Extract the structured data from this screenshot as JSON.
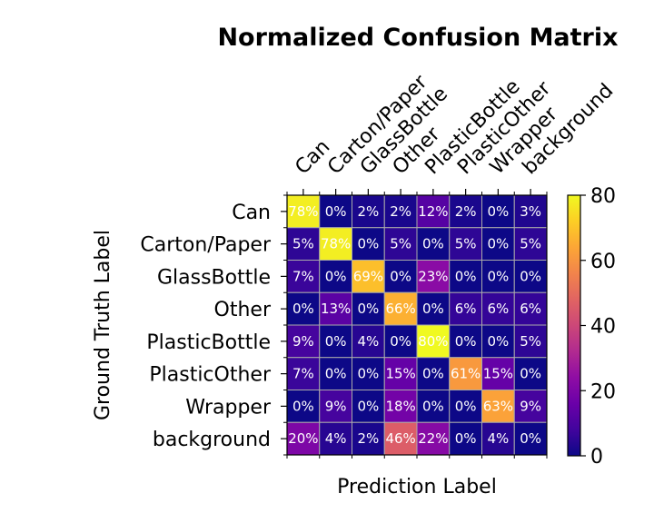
{
  "chart_data": {
    "type": "heatmap",
    "title": "Normalized Confusion Matrix",
    "xlabel": "Prediction Label",
    "ylabel": "Ground Truth Label",
    "x_categories": [
      "Can",
      "Carton/Paper",
      "GlassBottle",
      "Other",
      "PlasticBottle",
      "PlasticOther",
      "Wrapper",
      "background"
    ],
    "y_categories": [
      "Can",
      "Carton/Paper",
      "GlassBottle",
      "Other",
      "PlasticBottle",
      "PlasticOther",
      "Wrapper",
      "background"
    ],
    "values": [
      [
        78,
        0,
        2,
        2,
        12,
        2,
        0,
        3
      ],
      [
        5,
        78,
        0,
        5,
        0,
        5,
        0,
        5
      ],
      [
        7,
        0,
        69,
        0,
        23,
        0,
        0,
        0
      ],
      [
        0,
        13,
        0,
        66,
        0,
        6,
        6,
        6
      ],
      [
        9,
        0,
        4,
        0,
        80,
        0,
        0,
        5
      ],
      [
        7,
        0,
        0,
        15,
        0,
        61,
        15,
        0
      ],
      [
        0,
        9,
        0,
        18,
        0,
        0,
        63,
        9
      ],
      [
        20,
        4,
        2,
        46,
        22,
        0,
        4,
        0
      ]
    ],
    "value_format": "%",
    "colormap": "plasma",
    "vmin": 0,
    "vmax": 80,
    "colorbar_ticks": [
      0,
      20,
      40,
      60,
      80
    ],
    "grid": true,
    "grid_color": "#aaaaaa"
  }
}
